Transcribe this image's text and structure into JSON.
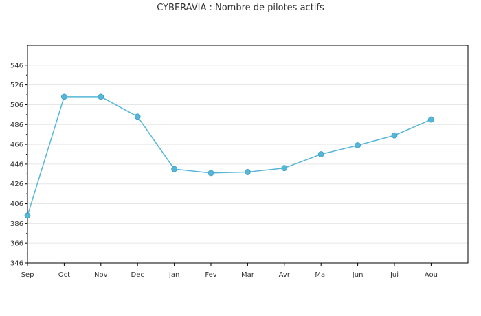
{
  "chart_data": {
    "type": "line",
    "title": "CYBERAVIA : Nombre de pilotes actifs",
    "xlabel": "",
    "ylabel": "",
    "categories": [
      "Sep",
      "Oct",
      "Nov",
      "Dec",
      "Jan",
      "Fev",
      "Mar",
      "Avr",
      "Mai",
      "Jun",
      "Jui",
      "Aou"
    ],
    "series": [
      {
        "values": [
          394,
          514,
          514,
          494,
          441,
          437,
          438,
          442,
          456,
          465,
          475,
          491
        ]
      }
    ],
    "ylim": [
      346,
      566
    ],
    "yticks": [
      346,
      366,
      386,
      406,
      426,
      446,
      466,
      486,
      506,
      526,
      546
    ],
    "grid": true,
    "line_color": "#55b6d8",
    "marker_color": "#55b6d8",
    "grid_color": "#e6e6e6",
    "axis_color": "#000000"
  }
}
